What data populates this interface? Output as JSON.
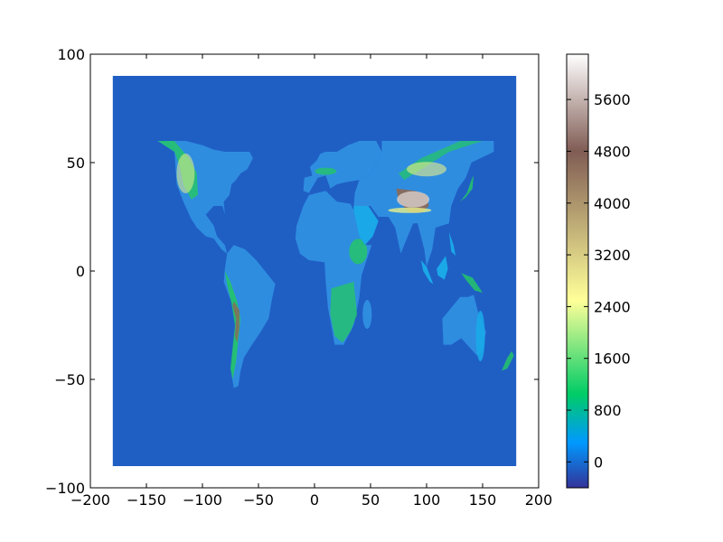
{
  "chart_data": {
    "type": "heatmap",
    "title": "",
    "xlabel": "",
    "ylabel": "",
    "xlim": [
      -200,
      200
    ],
    "ylim": [
      -100,
      100
    ],
    "xticks": [
      -200,
      -150,
      -100,
      -50,
      0,
      50,
      100,
      150,
      200
    ],
    "yticks": [
      -100,
      -50,
      0,
      50,
      100
    ],
    "xtick_labels": [
      "−200",
      "−150",
      "−100",
      "−50",
      "0",
      "50",
      "100",
      "150",
      "200"
    ],
    "ytick_labels": [
      "−100",
      "−50",
      "0",
      "50",
      "100"
    ],
    "extent": {
      "lon": [
        -180,
        180
      ],
      "lat": [
        -90,
        90
      ]
    },
    "data_coverage_lat": [
      -56,
      60
    ],
    "ocean_value": 0,
    "colormap": "terrain",
    "colorbar": {
      "min": -400,
      "max": 6300,
      "ticks": [
        0,
        800,
        1600,
        2400,
        3200,
        4000,
        4800,
        5600
      ],
      "tick_labels": [
        "0",
        "800",
        "1600",
        "2400",
        "3200",
        "4000",
        "4800",
        "5600"
      ],
      "stops": [
        {
          "value": -400,
          "color": "#333399"
        },
        {
          "value": 300,
          "color": "#0099ff"
        },
        {
          "value": 1050,
          "color": "#00cc66"
        },
        {
          "value": 2500,
          "color": "#ffff99"
        },
        {
          "value": 4800,
          "color": "#805c54"
        },
        {
          "value": 6300,
          "color": "#ffffff"
        }
      ]
    }
  }
}
